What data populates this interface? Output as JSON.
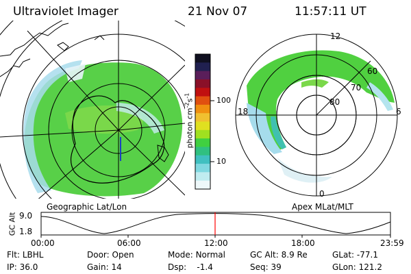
{
  "header": {
    "title": "Ultraviolet Imager",
    "date": "21 Nov 07",
    "time": "11:57:11 UT"
  },
  "left_panel": {
    "label": "Geographic Lat/Lon"
  },
  "right_panel": {
    "label": "Apex MLat/MLT",
    "mlt_labels": [
      "12",
      "18",
      "6",
      "0"
    ],
    "lat_labels": [
      "60",
      "70",
      "80"
    ]
  },
  "colorbar": {
    "unit_label": "photon cm",
    "unit_sup1": "-2",
    "unit_mid": "s",
    "unit_sup2": "-1",
    "ticks": [
      "100",
      "10"
    ],
    "colors": [
      "#101020",
      "#202050",
      "#5a1e5a",
      "#8a1028",
      "#c01010",
      "#e05010",
      "#f09010",
      "#f0c030",
      "#e0e020",
      "#a0e020",
      "#40d040",
      "#30c080",
      "#40c0c0",
      "#80d8e0",
      "#c0ecf0",
      "#eef8fa"
    ]
  },
  "altitude_plot": {
    "ylabel": "GC Alt",
    "y_ticks": [
      "9.0",
      "1.8"
    ],
    "x_ticks": [
      "00:00",
      "06:00",
      "12:00",
      "18:00",
      "23:59"
    ],
    "marker_color": "#ff0000"
  },
  "status": {
    "row1": [
      {
        "key": "Flt:",
        "value": "LBHL"
      },
      {
        "key": "Door:",
        "value": "Open"
      },
      {
        "key": "Mode:",
        "value": "Normal"
      },
      {
        "key": "GC Alt:",
        "value": "8.9 Re"
      },
      {
        "key": "GLat:",
        "value": "-77.1"
      }
    ],
    "row2": [
      {
        "key": "IP:",
        "value": "36.0"
      },
      {
        "key": "Gain:",
        "value": "14"
      },
      {
        "key": "Dsp:",
        "value": "-1.4"
      },
      {
        "key": "Seq:",
        "value": "39"
      },
      {
        "key": "GLon:",
        "value": "121.2"
      }
    ]
  }
}
